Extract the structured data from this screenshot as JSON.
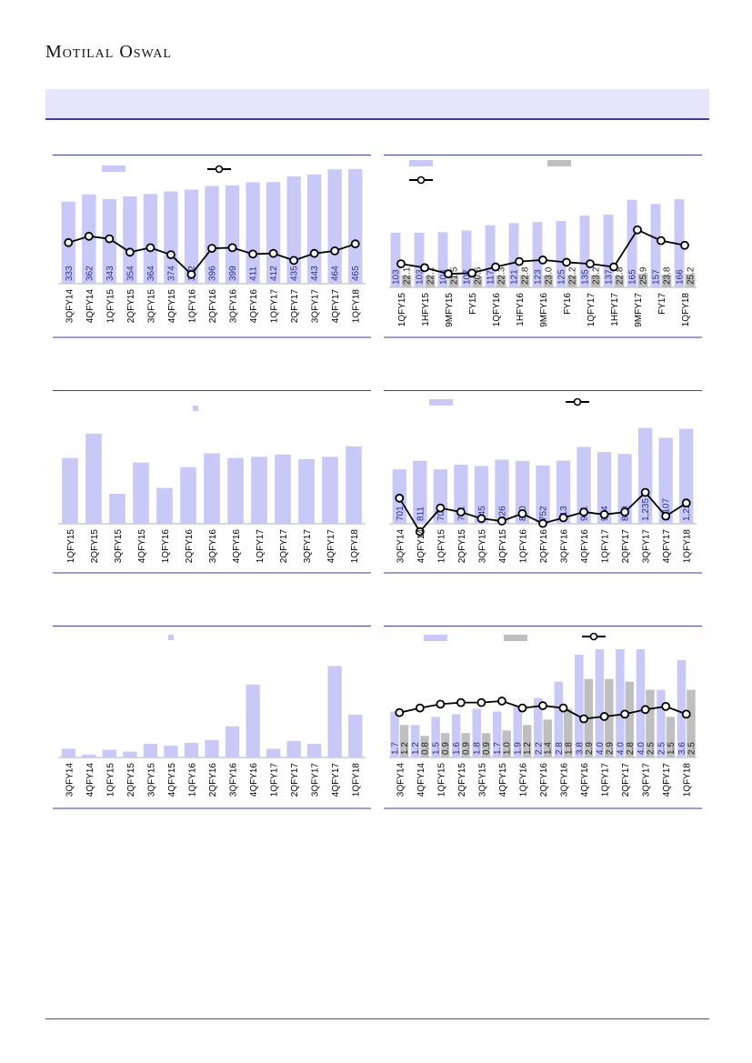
{
  "header": {
    "brand": "Motilal Oswal"
  },
  "colors": {
    "bar": "#c8c9f7",
    "bar_gray": "#bfbfbf",
    "line": "#000000",
    "rule": "#3f4196",
    "label": "#2b2f8a"
  },
  "chart_data": [
    {
      "type": "bar",
      "categories": [
        "3QFY14",
        "4QFY14",
        "1QFY15",
        "2QFY15",
        "3QFY15",
        "4QFY15",
        "1QFY16",
        "2QFY16",
        "3QFY16",
        "4QFY16",
        "1QFY17",
        "2QFY17",
        "3QFY17",
        "4QFY17",
        "1QFY18"
      ],
      "series": [
        {
          "type": "bar",
          "values": [
            333,
            362,
            343,
            354,
            364,
            374,
            382,
            396,
            399,
            411,
            412,
            435,
            443,
            464,
            465
          ],
          "labels": [
            "333",
            "362",
            "343",
            "354",
            "364",
            "374",
            "382",
            "396",
            "399",
            "411",
            "412",
            "435",
            "443",
            "464",
            "465"
          ]
        },
        {
          "type": "line",
          "values": [
            0.76,
            0.86,
            0.82,
            0.61,
            0.68,
            0.57,
            0.26,
            0.67,
            0.68,
            0.58,
            0.59,
            0.48,
            0.59,
            0.63,
            0.74
          ]
        }
      ]
    },
    {
      "type": "bar",
      "categories": [
        "1QFY15",
        "1HFY15",
        "9MFY15",
        "FY15",
        "1QFY16",
        "1HFY16",
        "9MFY16",
        "FY16",
        "1QFY17",
        "1HFY17",
        "9MFY17",
        "FY17",
        "1QFY18"
      ],
      "series": [
        {
          "type": "bar",
          "values": [
            103,
            103,
            104,
            107,
            117,
            121,
            123,
            125,
            135,
            137,
            165,
            157,
            166
          ],
          "labels": [
            "103",
            "103",
            "104",
            "107",
            "117",
            "121",
            "123",
            "125",
            "135",
            "137",
            "165",
            "157",
            "166"
          ]
        },
        {
          "type": "bar",
          "color": "gray",
          "values": [
            22.1,
            22.1,
            21.5,
            20.6,
            22.3,
            22.8,
            23.0,
            22.2,
            23.2,
            22.8,
            25.9,
            23.8,
            25.2
          ],
          "labels": [
            "22.1",
            "22.1",
            "21.5",
            "20.6",
            "22.3",
            "22.8",
            "23.0",
            "22.2",
            "23.2",
            "22.8",
            "25.9",
            "23.8",
            "25.2"
          ]
        },
        {
          "type": "line",
          "values": [
            0.41,
            0.36,
            0.28,
            0.29,
            0.37,
            0.44,
            0.46,
            0.43,
            0.41,
            0.37,
            0.85,
            0.71,
            0.65
          ]
        }
      ]
    },
    {
      "type": "bar",
      "categories": [
        "1QFY15",
        "2QFY15",
        "3QFY15",
        "4QFY15",
        "1QFY16",
        "2QFY16",
        "3QFY16",
        "4QFY16",
        "1QFY17",
        "2QFY17",
        "3QFY17",
        "4QFY17",
        "1QFY18"
      ],
      "series": [
        {
          "type": "bar",
          "values": [
            0.57,
            0.78,
            0.26,
            0.53,
            0.31,
            0.49,
            0.61,
            0.57,
            0.58,
            0.6,
            0.56,
            0.58,
            0.67
          ]
        }
      ]
    },
    {
      "type": "bar",
      "categories": [
        "3QFY14",
        "4QFY14",
        "1QFY15",
        "2QFY15",
        "3QFY15",
        "4QFY15",
        "1QFY16",
        "2QFY16",
        "3QFY16",
        "4QFY16",
        "1QFY17",
        "2QFY17",
        "3QFY17",
        "4QFY17",
        "1QFY18"
      ],
      "series": [
        {
          "type": "bar",
          "values": [
            701,
            811,
            700,
            761,
            745,
            826,
            810,
            752,
            813,
            991,
            924,
            899,
            1235,
            1107,
            1223
          ],
          "labels": [
            "701",
            "811",
            "700",
            "761",
            "745",
            "826",
            "810",
            "752",
            "813",
            "991",
            "924",
            "899",
            "1,235",
            "1,107",
            "1,223"
          ]
        },
        {
          "type": "line",
          "values": [
            0.68,
            0.27,
            0.56,
            0.51,
            0.43,
            0.4,
            0.49,
            0.37,
            0.44,
            0.51,
            0.48,
            0.51,
            0.75,
            0.46,
            0.62
          ]
        }
      ]
    },
    {
      "type": "bar",
      "categories": [
        "3QFY14",
        "4QFY14",
        "1QFY15",
        "2QFY15",
        "3QFY15",
        "4QFY15",
        "1QFY16",
        "2QFY16",
        "3QFY16",
        "4QFY16",
        "1QFY17",
        "2QFY17",
        "3QFY17",
        "4QFY17",
        "1QFY18"
      ],
      "series": [
        {
          "type": "bar",
          "values": [
            0.09,
            0.03,
            0.08,
            0.06,
            0.14,
            0.12,
            0.15,
            0.18,
            0.32,
            0.75,
            0.09,
            0.17,
            0.14,
            0.94,
            0.44
          ]
        }
      ]
    },
    {
      "type": "bar",
      "categories": [
        "3QFY14",
        "4QFY14",
        "1QFY15",
        "2QFY15",
        "3QFY15",
        "4QFY15",
        "1QFY16",
        "2QFY16",
        "3QFY16",
        "4QFY16",
        "1QFY17",
        "2QFY17",
        "3QFY17",
        "4QFY17",
        "1QFY18"
      ],
      "series": [
        {
          "type": "bar",
          "values": [
            1.7,
            1.2,
            1.5,
            1.6,
            1.8,
            1.7,
            1.9,
            2.2,
            2.8,
            3.8,
            4.0,
            4.0,
            4.0,
            2.5,
            3.6
          ],
          "labels": [
            "1.7",
            "1.2",
            "1.5",
            "1.6",
            "1.8",
            "1.7",
            "1.9",
            "2.2",
            "2.8",
            "3.8",
            "4.0",
            "4.0",
            "4.0",
            "2.5",
            "3.6"
          ]
        },
        {
          "type": "bar",
          "color": "gray",
          "values": [
            1.2,
            0.8,
            0.9,
            0.9,
            0.9,
            1.0,
            1.2,
            1.4,
            1.8,
            2.9,
            2.9,
            2.8,
            2.5,
            1.5,
            2.5
          ],
          "labels": [
            "1.2",
            "0.8",
            "0.9",
            "0.9",
            "0.9",
            "1.0",
            "1.2",
            "1.4",
            "1.8",
            "2.9",
            "2.9",
            "2.8",
            "2.5",
            "1.5",
            "2.5"
          ]
        },
        {
          "type": "line",
          "values": [
            0.58,
            0.64,
            0.69,
            0.71,
            0.71,
            0.73,
            0.64,
            0.67,
            0.64,
            0.5,
            0.53,
            0.56,
            0.62,
            0.66,
            0.56
          ]
        }
      ]
    }
  ]
}
